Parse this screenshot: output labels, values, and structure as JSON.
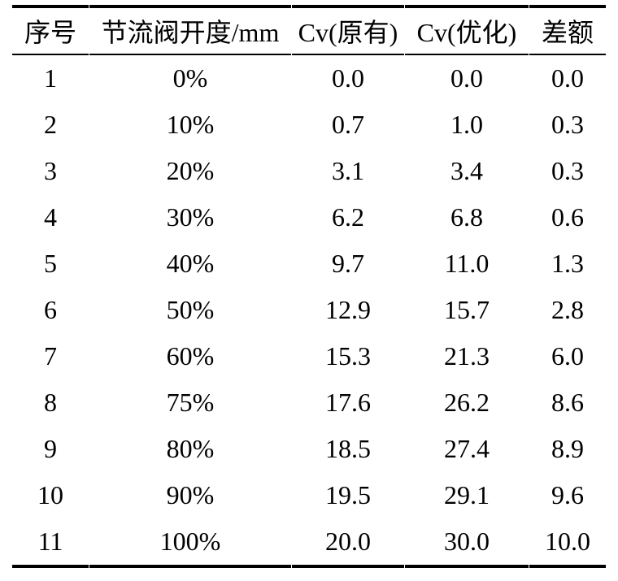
{
  "table": {
    "headers": [
      "序号",
      "节流阀开度/mm",
      "Cv(原有)",
      "Cv(优化)",
      "差额"
    ],
    "rows": [
      [
        "1",
        "0%",
        "0.0",
        "0.0",
        "0.0"
      ],
      [
        "2",
        "10%",
        "0.7",
        "1.0",
        "0.3"
      ],
      [
        "3",
        "20%",
        "3.1",
        "3.4",
        "0.3"
      ],
      [
        "4",
        "30%",
        "6.2",
        "6.8",
        "0.6"
      ],
      [
        "5",
        "40%",
        "9.7",
        "11.0",
        "1.3"
      ],
      [
        "6",
        "50%",
        "12.9",
        "15.7",
        "2.8"
      ],
      [
        "7",
        "60%",
        "15.3",
        "21.3",
        "6.0"
      ],
      [
        "8",
        "75%",
        "17.6",
        "26.2",
        "8.6"
      ],
      [
        "9",
        "80%",
        "18.5",
        "27.4",
        "8.9"
      ],
      [
        "10",
        "90%",
        "19.5",
        "29.1",
        "9.6"
      ],
      [
        "11",
        "100%",
        "20.0",
        "30.0",
        "10.0"
      ]
    ],
    "colors": {
      "border": "#000000",
      "text": "#000000",
      "background": "#ffffff"
    }
  }
}
